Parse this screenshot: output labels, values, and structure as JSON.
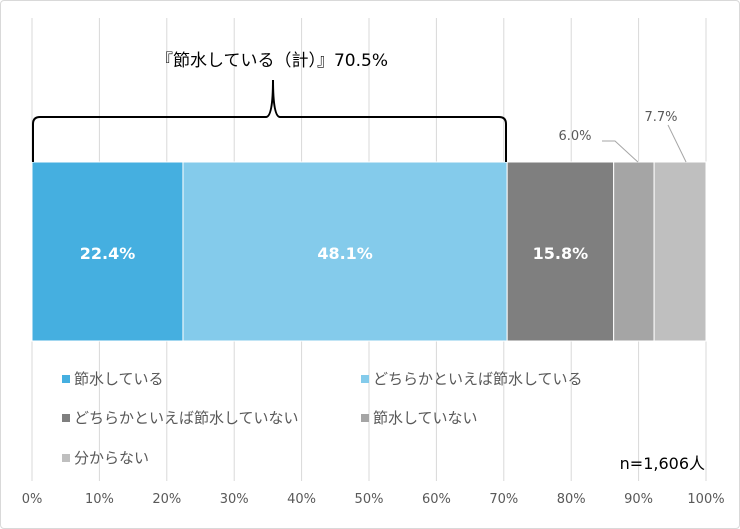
{
  "chart_data": {
    "type": "bar",
    "orientation": "horizontal-stacked-100",
    "series": [
      {
        "name": "節水している",
        "values": [
          22.4
        ],
        "label": "22.4%",
        "color": "#45afe0"
      },
      {
        "name": "どちらかといえば節水している",
        "values": [
          48.1
        ],
        "label": "48.1%",
        "color": "#84cbeb"
      },
      {
        "name": "どちらかといえば節水していない",
        "values": [
          15.8
        ],
        "label": "15.8%",
        "color": "#7f7f7f"
      },
      {
        "name": "節水していない",
        "values": [
          6.0
        ],
        "label": "6.0%",
        "color": "#a5a5a5"
      },
      {
        "name": "分からない",
        "values": [
          7.7
        ],
        "label": "7.7%",
        "color": "#bfbfbf"
      }
    ],
    "xlim": [
      0,
      100
    ],
    "xticks": [
      "0%",
      "10%",
      "20%",
      "30%",
      "40%",
      "50%",
      "60%",
      "70%",
      "80%",
      "90%",
      "100%"
    ],
    "grid": true,
    "legend": "bottom",
    "annotation": "『節水している（計）』70.5%",
    "note": "n=1,606人"
  }
}
